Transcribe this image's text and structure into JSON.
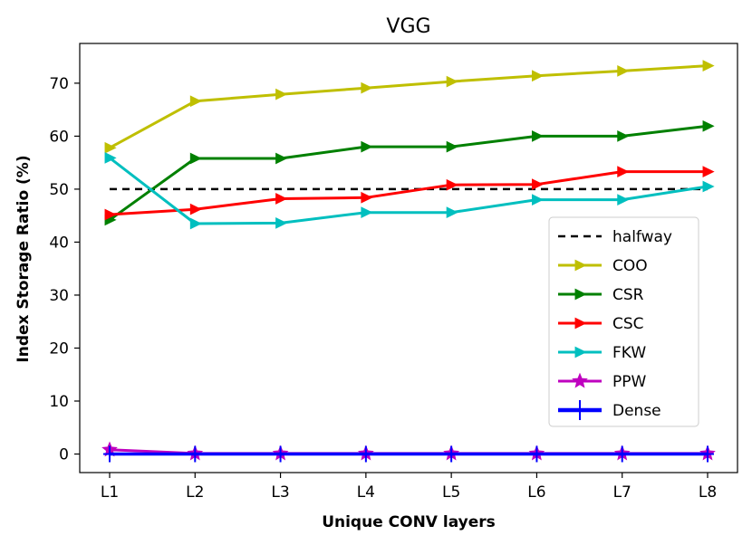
{
  "chart_data": {
    "type": "line",
    "title": "VGG",
    "xlabel": "Unique CONV layers",
    "ylabel": "Index Storage Ratio (%)",
    "categories": [
      "L1",
      "L2",
      "L3",
      "L4",
      "L5",
      "L6",
      "L7",
      "L8"
    ],
    "ylim": [
      -3.5,
      77.5
    ],
    "yticks": [
      0,
      10,
      20,
      30,
      40,
      50,
      60,
      70
    ],
    "grid": false,
    "legend_position": "lower-right",
    "series": [
      {
        "name": "halfway",
        "color": "#000000",
        "style": "dashed",
        "marker": "none",
        "values": [
          50,
          50,
          50,
          50,
          50,
          50,
          50,
          50
        ]
      },
      {
        "name": "COO",
        "color": "#bfbf00",
        "style": "solid",
        "marker": "triangle-right",
        "values": [
          57.8,
          66.6,
          67.9,
          69.1,
          70.3,
          71.4,
          72.3,
          73.3
        ]
      },
      {
        "name": "CSR",
        "color": "#008000",
        "style": "solid",
        "marker": "triangle-right",
        "values": [
          44.2,
          55.8,
          55.8,
          58.0,
          58.0,
          60.0,
          60.0,
          61.9
        ]
      },
      {
        "name": "CSC",
        "color": "#ff0000",
        "style": "solid",
        "marker": "triangle-right",
        "values": [
          45.2,
          46.2,
          48.2,
          48.4,
          50.8,
          50.9,
          53.3,
          53.3
        ]
      },
      {
        "name": "FKW",
        "color": "#00bfbf",
        "style": "solid",
        "marker": "triangle-right",
        "values": [
          55.9,
          43.5,
          43.6,
          45.6,
          45.6,
          48.0,
          48.0,
          50.5
        ]
      },
      {
        "name": "PPW",
        "color": "#bf00bf",
        "style": "solid",
        "marker": "star",
        "values": [
          0.8,
          0.1,
          0.1,
          0.1,
          0.1,
          0.1,
          0.1,
          0.1
        ]
      },
      {
        "name": "Dense",
        "color": "#0000ff",
        "style": "solid-thick",
        "marker": "plus",
        "values": [
          0,
          0,
          0,
          0,
          0,
          0,
          0,
          0
        ]
      }
    ]
  }
}
